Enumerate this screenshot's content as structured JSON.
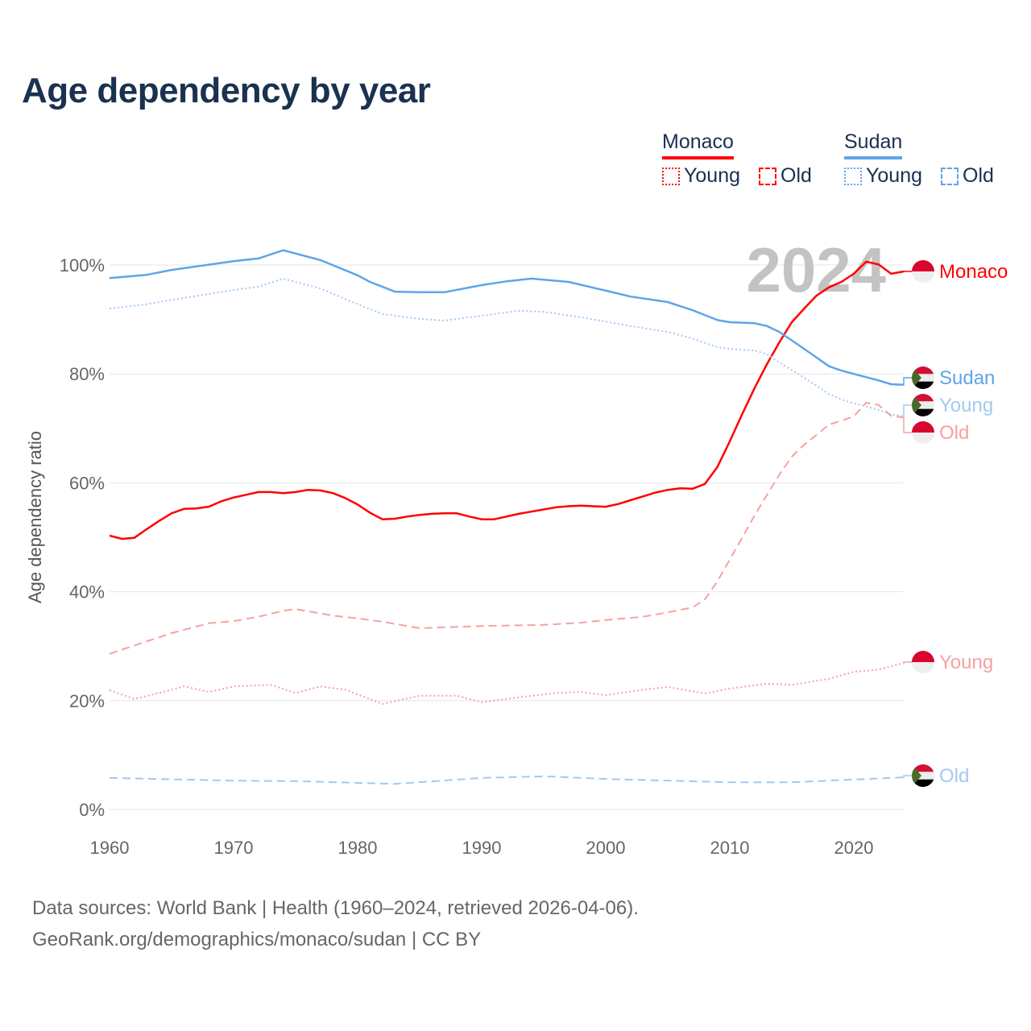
{
  "title": "Age dependency by year",
  "legend": {
    "countries": [
      {
        "name": "Monaco",
        "color": "#ff0000",
        "items": [
          "Young",
          "Old"
        ]
      },
      {
        "name": "Sudan",
        "color": "#5ea5e8",
        "items": [
          "Young",
          "Old"
        ]
      }
    ]
  },
  "year_watermark": "2024",
  "source": {
    "line1": "Data sources: World Bank | Health (1960–2024, retrieved 2026-04-06).",
    "line2": "GeoRank.org/demographics/monaco/sudan | CC BY"
  },
  "chart_data": {
    "type": "line",
    "title": "Age dependency by year",
    "xlabel": "",
    "ylabel": "Age dependency ratio",
    "xlim": [
      1960,
      2024
    ],
    "ylim": [
      0,
      110
    ],
    "x_ticks": [
      "1960",
      "1970",
      "1980",
      "1990",
      "2000",
      "2010",
      "2020"
    ],
    "y_ticks": [
      "0%",
      "20%",
      "40%",
      "60%",
      "80%",
      "100%"
    ],
    "grid": true,
    "series": [
      {
        "name": "Monaco",
        "country": "Monaco",
        "kind": "total",
        "label": "Monaco",
        "color": "#ff0000",
        "dash": "solid",
        "flag": "monaco",
        "x": [
          1960,
          1961,
          1962,
          1963,
          1964,
          1965,
          1966,
          1967,
          1968,
          1969,
          1970,
          1971,
          1972,
          1973,
          1974,
          1975,
          1976,
          1977,
          1978,
          1979,
          1980,
          1981,
          1982,
          1983,
          1984,
          1985,
          1986,
          1987,
          1988,
          1989,
          1990,
          1991,
          1992,
          1993,
          1994,
          1995,
          1996,
          1997,
          1998,
          1999,
          2000,
          2001,
          2002,
          2003,
          2004,
          2005,
          2006,
          2007,
          2008,
          2009,
          2010,
          2011,
          2012,
          2013,
          2014,
          2015,
          2016,
          2017,
          2018,
          2019,
          2020,
          2021,
          2022,
          2023,
          2024
        ],
        "y": [
          50.3,
          49.7,
          49.9,
          51.5,
          53.0,
          54.4,
          55.2,
          55.3,
          55.6,
          56.6,
          57.3,
          57.8,
          58.3,
          58.3,
          58.1,
          58.3,
          58.7,
          58.6,
          58.1,
          57.2,
          56.0,
          54.5,
          53.3,
          53.4,
          53.8,
          54.1,
          54.3,
          54.4,
          54.4,
          53.8,
          53.3,
          53.3,
          53.8,
          54.3,
          54.7,
          55.1,
          55.5,
          55.7,
          55.8,
          55.7,
          55.6,
          56.1,
          56.8,
          57.5,
          58.2,
          58.7,
          59.0,
          58.9,
          59.8,
          62.9,
          67.6,
          72.6,
          77.4,
          81.8,
          85.8,
          89.5,
          92.0,
          94.4,
          95.9,
          96.9,
          98.4,
          100.6,
          100.1,
          98.4,
          98.8
        ]
      },
      {
        "name": "Monaco Old",
        "country": "Monaco",
        "kind": "old",
        "label": "Old",
        "color": "#f7a1a1",
        "dash": "dashed",
        "flag": "monaco",
        "x": [
          1960,
          1965,
          1968,
          1970,
          1972,
          1974,
          1975,
          1978,
          1980,
          1982,
          1985,
          1990,
          1995,
          1998,
          2000,
          2003,
          2005,
          2007,
          2008,
          2009,
          2010,
          2011,
          2012,
          2013,
          2014,
          2015,
          2016,
          2017,
          2018,
          2019,
          2020,
          2021,
          2022,
          2023,
          2024
        ],
        "y": [
          28.6,
          32.4,
          34.2,
          34.6,
          35.4,
          36.5,
          36.8,
          35.6,
          35.1,
          34.5,
          33.3,
          33.7,
          33.9,
          34.3,
          34.8,
          35.4,
          36.2,
          37.1,
          38.6,
          41.9,
          45.9,
          49.9,
          54.0,
          57.8,
          61.5,
          64.8,
          67.0,
          68.8,
          70.7,
          71.4,
          72.2,
          74.7,
          74.3,
          72.3,
          72.0
        ]
      },
      {
        "name": "Monaco Young",
        "country": "Monaco",
        "kind": "young",
        "label": "Young",
        "color": "#f7a1a1",
        "dash": "dotted",
        "flag": "monaco",
        "x": [
          1960,
          1962,
          1964,
          1966,
          1968,
          1970,
          1973,
          1975,
          1977,
          1979,
          1982,
          1985,
          1988,
          1990,
          1993,
          1996,
          1998,
          2000,
          2003,
          2005,
          2008,
          2010,
          2013,
          2015,
          2018,
          2020,
          2022,
          2024
        ],
        "y": [
          21.9,
          20.3,
          21.4,
          22.6,
          21.6,
          22.6,
          22.9,
          21.4,
          22.6,
          22.0,
          19.4,
          20.9,
          20.9,
          19.7,
          20.6,
          21.4,
          21.6,
          21.0,
          22.0,
          22.5,
          21.3,
          22.2,
          23.1,
          22.9,
          24.0,
          25.3,
          25.7,
          26.9
        ]
      },
      {
        "name": "Sudan",
        "country": "Sudan",
        "kind": "total",
        "label": "Sudan",
        "color": "#5ea5e8",
        "dash": "solid",
        "flag": "sudan",
        "x": [
          1960,
          1963,
          1965,
          1970,
          1972,
          1974,
          1977,
          1980,
          1981,
          1983,
          1985,
          1987,
          1990,
          1992,
          1994,
          1997,
          2000,
          2002,
          2005,
          2007,
          2009,
          2010,
          2012,
          2013,
          2014,
          2016,
          2018,
          2019,
          2020,
          2022,
          2023,
          2024
        ],
        "y": [
          97.6,
          98.2,
          99.1,
          100.7,
          101.2,
          102.7,
          100.9,
          98.1,
          96.9,
          95.1,
          95.0,
          95.0,
          96.3,
          97.0,
          97.5,
          96.9,
          95.3,
          94.2,
          93.2,
          91.7,
          89.9,
          89.5,
          89.3,
          88.8,
          87.7,
          84.6,
          81.4,
          80.6,
          80.0,
          78.8,
          78.1,
          78.0
        ]
      },
      {
        "name": "Sudan Young",
        "country": "Sudan",
        "kind": "young",
        "label": "Young",
        "color": "#a4c9f1",
        "dash": "dotted",
        "flag": "sudan",
        "x": [
          1960,
          1963,
          1965,
          1970,
          1972,
          1974,
          1977,
          1980,
          1982,
          1985,
          1987,
          1990,
          1993,
          1995,
          1998,
          2000,
          2002,
          2005,
          2007,
          2009,
          2010,
          2012,
          2013,
          2014,
          2016,
          2018,
          2019,
          2020,
          2022,
          2023,
          2024
        ],
        "y": [
          92.0,
          92.8,
          93.6,
          95.4,
          96.0,
          97.5,
          95.7,
          92.8,
          91.0,
          90.1,
          89.8,
          90.7,
          91.6,
          91.4,
          90.4,
          89.6,
          88.8,
          87.7,
          86.5,
          84.9,
          84.6,
          84.3,
          83.6,
          82.1,
          79.3,
          76.3,
          75.3,
          74.6,
          73.4,
          72.6,
          72.2
        ]
      },
      {
        "name": "Sudan Old",
        "country": "Sudan",
        "kind": "old",
        "label": "Old",
        "color": "#a4c9f1",
        "dash": "dashed",
        "flag": "sudan",
        "x": [
          1960,
          1970,
          1975,
          1983,
          1990,
          1995,
          2000,
          2010,
          2015,
          2020,
          2024
        ],
        "y": [
          5.8,
          5.3,
          5.2,
          4.7,
          5.8,
          6.1,
          5.6,
          5.0,
          5.0,
          5.5,
          5.9
        ]
      }
    ],
    "end_labels_order": [
      "Monaco",
      "Sudan",
      "Sudan Young",
      "Monaco Old",
      "Monaco Young",
      "Sudan Old"
    ]
  }
}
